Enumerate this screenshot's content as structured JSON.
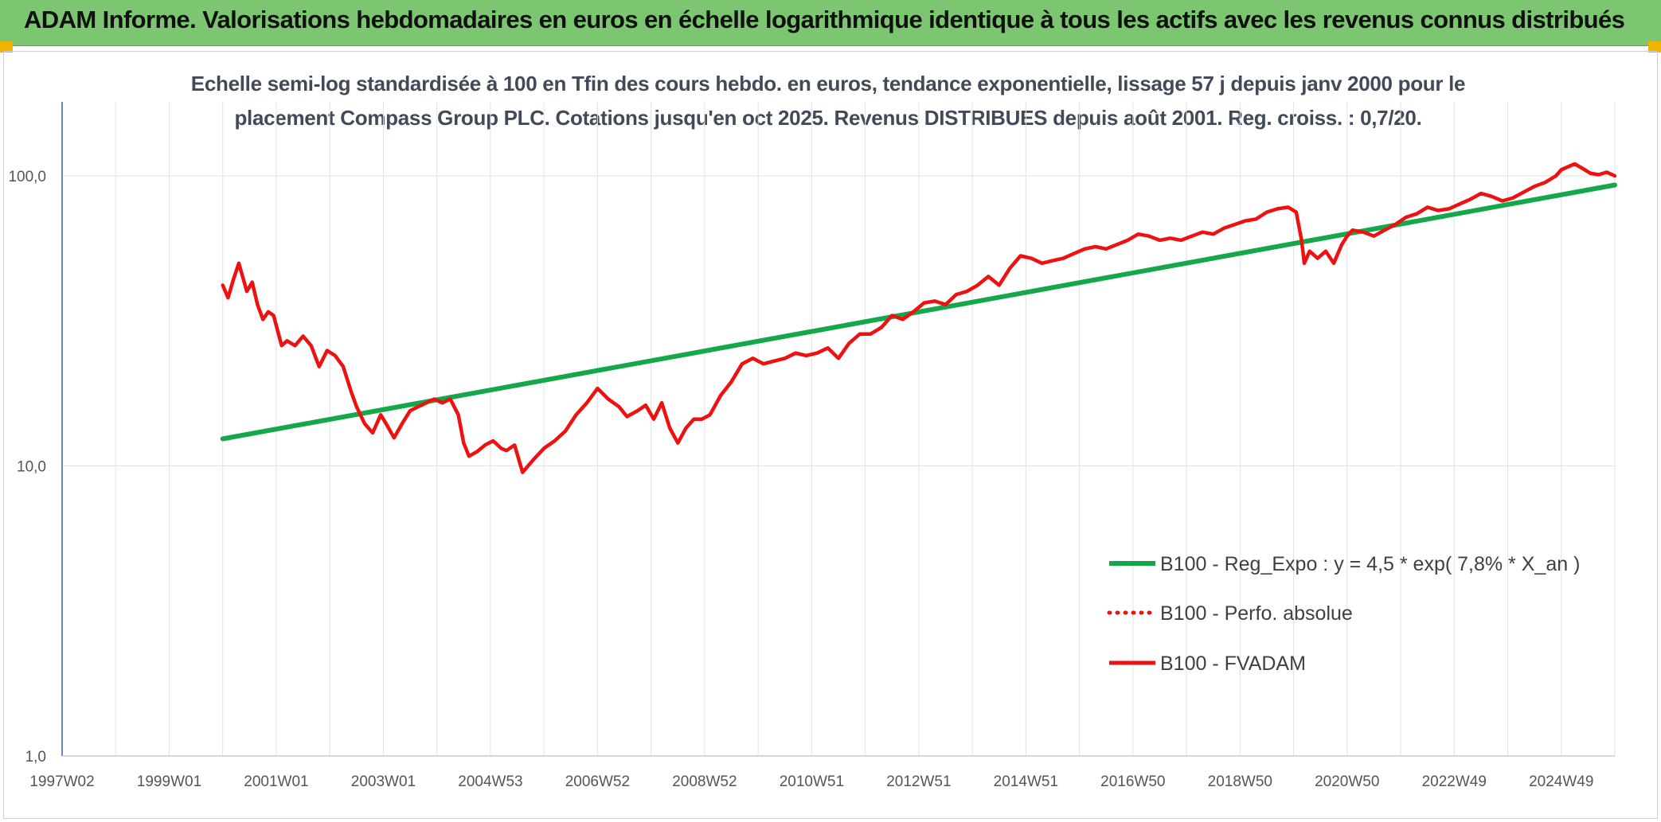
{
  "header": {
    "title": "ADAM Informe. Valorisations hebdomadaires en euros en échelle logarithmique identique à tous les actifs avec les revenus connus distribués"
  },
  "chart_data": {
    "type": "line",
    "subtitle_line1": "Echelle semi-log standardisée à 100 en Tfin des cours hebdo. en euros, tendance exponentielle, lissage 57 j depuis janv 2000 pour le",
    "subtitle_line2": "placement Compass Group PLC. Cotations jusqu'en oct 2025. Revenus DISTRIBUES depuis août 2001. Reg. croiss. : 0,7/20.",
    "y_scale": "log",
    "ylim": [
      1,
      180
    ],
    "x_range": [
      1997.0,
      2026.0
    ],
    "y_ticks": [
      {
        "value": 1,
        "label": "1,0"
      },
      {
        "value": 10,
        "label": "10,0"
      },
      {
        "value": 100,
        "label": "100,0"
      }
    ],
    "x_ticks": [
      {
        "value": 1997.0,
        "label": "1997W02"
      },
      {
        "value": 1999.0,
        "label": "1999W01"
      },
      {
        "value": 2001.0,
        "label": "2001W01"
      },
      {
        "value": 2003.0,
        "label": "2003W01"
      },
      {
        "value": 2005.0,
        "label": "2004W53"
      },
      {
        "value": 2007.0,
        "label": "2006W52"
      },
      {
        "value": 2009.0,
        "label": "2008W52"
      },
      {
        "value": 2011.0,
        "label": "2010W51"
      },
      {
        "value": 2013.0,
        "label": "2012W51"
      },
      {
        "value": 2015.0,
        "label": "2014W51"
      },
      {
        "value": 2017.0,
        "label": "2016W50"
      },
      {
        "value": 2019.0,
        "label": "2018W50"
      },
      {
        "value": 2021.0,
        "label": "2020W50"
      },
      {
        "value": 2023.0,
        "label": "2022W49"
      },
      {
        "value": 2025.0,
        "label": "2024W49"
      }
    ],
    "grid": true,
    "legend_position": "right",
    "series": [
      {
        "name": "B100 - Reg_Expo : y = 4,5 * exp( 7,8% * X_an )",
        "color": "#14a84a",
        "style": "solid",
        "x": [
          2000.0,
          2026.0
        ],
        "y": [
          12.4,
          93
        ]
      },
      {
        "name": "B100 - Perfo. absolue",
        "color": "#ee1111",
        "style": "dotted",
        "x": [],
        "y": []
      },
      {
        "name": "B100 - FVADAM",
        "color": "#ee1111",
        "style": "solid",
        "x": [
          2000.0,
          2000.1,
          2000.2,
          2000.3,
          2000.45,
          2000.55,
          2000.65,
          2000.75,
          2000.85,
          2000.95,
          2001.1,
          2001.2,
          2001.35,
          2001.5,
          2001.65,
          2001.8,
          2001.95,
          2002.1,
          2002.25,
          2002.4,
          2002.5,
          2002.65,
          2002.8,
          2002.95,
          2003.05,
          2003.2,
          2003.35,
          2003.5,
          2003.65,
          2003.8,
          2003.95,
          2004.1,
          2004.25,
          2004.4,
          2004.5,
          2004.6,
          2004.75,
          2004.9,
          2005.05,
          2005.2,
          2005.3,
          2005.45,
          2005.6,
          2005.8,
          2006.0,
          2006.2,
          2006.4,
          2006.6,
          2006.8,
          2007.0,
          2007.2,
          2007.4,
          2007.55,
          2007.75,
          2007.9,
          2008.05,
          2008.2,
          2008.35,
          2008.5,
          2008.65,
          2008.8,
          2008.95,
          2009.1,
          2009.3,
          2009.5,
          2009.7,
          2009.9,
          2010.1,
          2010.3,
          2010.5,
          2010.7,
          2010.9,
          2011.1,
          2011.3,
          2011.5,
          2011.7,
          2011.9,
          2012.1,
          2012.3,
          2012.5,
          2012.7,
          2012.9,
          2013.1,
          2013.3,
          2013.5,
          2013.7,
          2013.9,
          2014.1,
          2014.3,
          2014.5,
          2014.7,
          2014.9,
          2015.1,
          2015.3,
          2015.5,
          2015.7,
          2015.9,
          2016.1,
          2016.3,
          2016.5,
          2016.7,
          2016.9,
          2017.1,
          2017.3,
          2017.5,
          2017.7,
          2017.9,
          2018.1,
          2018.3,
          2018.5,
          2018.7,
          2018.9,
          2019.1,
          2019.3,
          2019.5,
          2019.7,
          2019.9,
          2020.05,
          2020.15,
          2020.2,
          2020.3,
          2020.45,
          2020.6,
          2020.75,
          2020.9,
          2021.0,
          2021.1,
          2021.3,
          2021.5,
          2021.7,
          2021.9,
          2022.1,
          2022.3,
          2022.5,
          2022.7,
          2022.9,
          2023.1,
          2023.3,
          2023.5,
          2023.7,
          2023.9,
          2024.1,
          2024.3,
          2024.5,
          2024.7,
          2024.9,
          2025.0,
          2025.1,
          2025.25,
          2025.4,
          2025.55,
          2025.7,
          2025.85,
          2026.0
        ],
        "y": [
          42,
          38,
          44,
          50,
          40,
          43,
          36,
          32,
          34,
          33,
          26,
          27,
          26,
          28,
          26,
          22,
          25,
          24,
          22,
          18,
          16,
          14,
          13,
          15,
          14,
          12.5,
          14,
          15.5,
          16,
          16.5,
          17,
          16.5,
          17,
          15,
          12,
          10.8,
          11.2,
          11.8,
          12.2,
          11.5,
          11.3,
          11.8,
          9.5,
          10.5,
          11.5,
          12.2,
          13.2,
          15,
          16.5,
          18.5,
          17,
          16,
          14.8,
          15.5,
          16.2,
          14.5,
          16.5,
          13.5,
          12,
          13.5,
          14.5,
          14.5,
          15,
          17.5,
          19.5,
          22.5,
          23.5,
          22.5,
          23,
          23.5,
          24.5,
          24,
          24.5,
          25.5,
          23.5,
          26.5,
          28.5,
          28.5,
          30,
          33,
          32,
          34,
          36.5,
          37,
          36,
          39,
          40,
          42,
          45,
          42,
          48,
          53,
          52,
          50,
          51,
          52,
          54,
          56,
          57,
          56,
          58,
          60,
          63,
          62,
          60,
          61,
          60,
          62,
          64,
          63,
          66,
          68,
          70,
          71,
          75,
          77,
          78,
          75,
          60,
          50,
          55,
          52,
          55,
          50,
          58,
          62,
          65,
          64,
          62,
          65,
          68,
          72,
          74,
          78,
          76,
          77,
          80,
          83,
          87,
          85,
          82,
          84,
          88,
          92,
          95,
          100,
          105,
          107,
          110,
          106,
          102,
          101,
          103,
          100
        ]
      }
    ]
  }
}
